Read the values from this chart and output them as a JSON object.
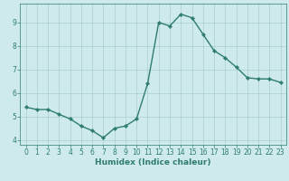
{
  "x": [
    0,
    1,
    2,
    3,
    4,
    5,
    6,
    7,
    8,
    9,
    10,
    11,
    12,
    13,
    14,
    15,
    16,
    17,
    18,
    19,
    20,
    21,
    22,
    23
  ],
  "y": [
    5.4,
    5.3,
    5.3,
    5.1,
    4.9,
    4.6,
    4.4,
    4.1,
    4.5,
    4.6,
    4.9,
    6.4,
    9.0,
    8.85,
    9.35,
    9.2,
    8.5,
    7.8,
    7.5,
    7.1,
    6.65,
    6.6,
    6.6,
    6.45
  ],
  "line_color": "#2e7d6e",
  "marker": "D",
  "marker_size": 2.2,
  "linewidth": 1.0,
  "xlabel": "Humidex (Indice chaleur)",
  "xlim": [
    -0.5,
    23.5
  ],
  "ylim": [
    3.8,
    9.8
  ],
  "yticks": [
    4,
    5,
    6,
    7,
    8,
    9
  ],
  "xticks": [
    0,
    1,
    2,
    3,
    4,
    5,
    6,
    7,
    8,
    9,
    10,
    11,
    12,
    13,
    14,
    15,
    16,
    17,
    18,
    19,
    20,
    21,
    22,
    23
  ],
  "bg_color": "#ceeaea",
  "grid_color": "#aacece",
  "tick_label_fontsize": 5.5,
  "xlabel_fontsize": 6.5
}
